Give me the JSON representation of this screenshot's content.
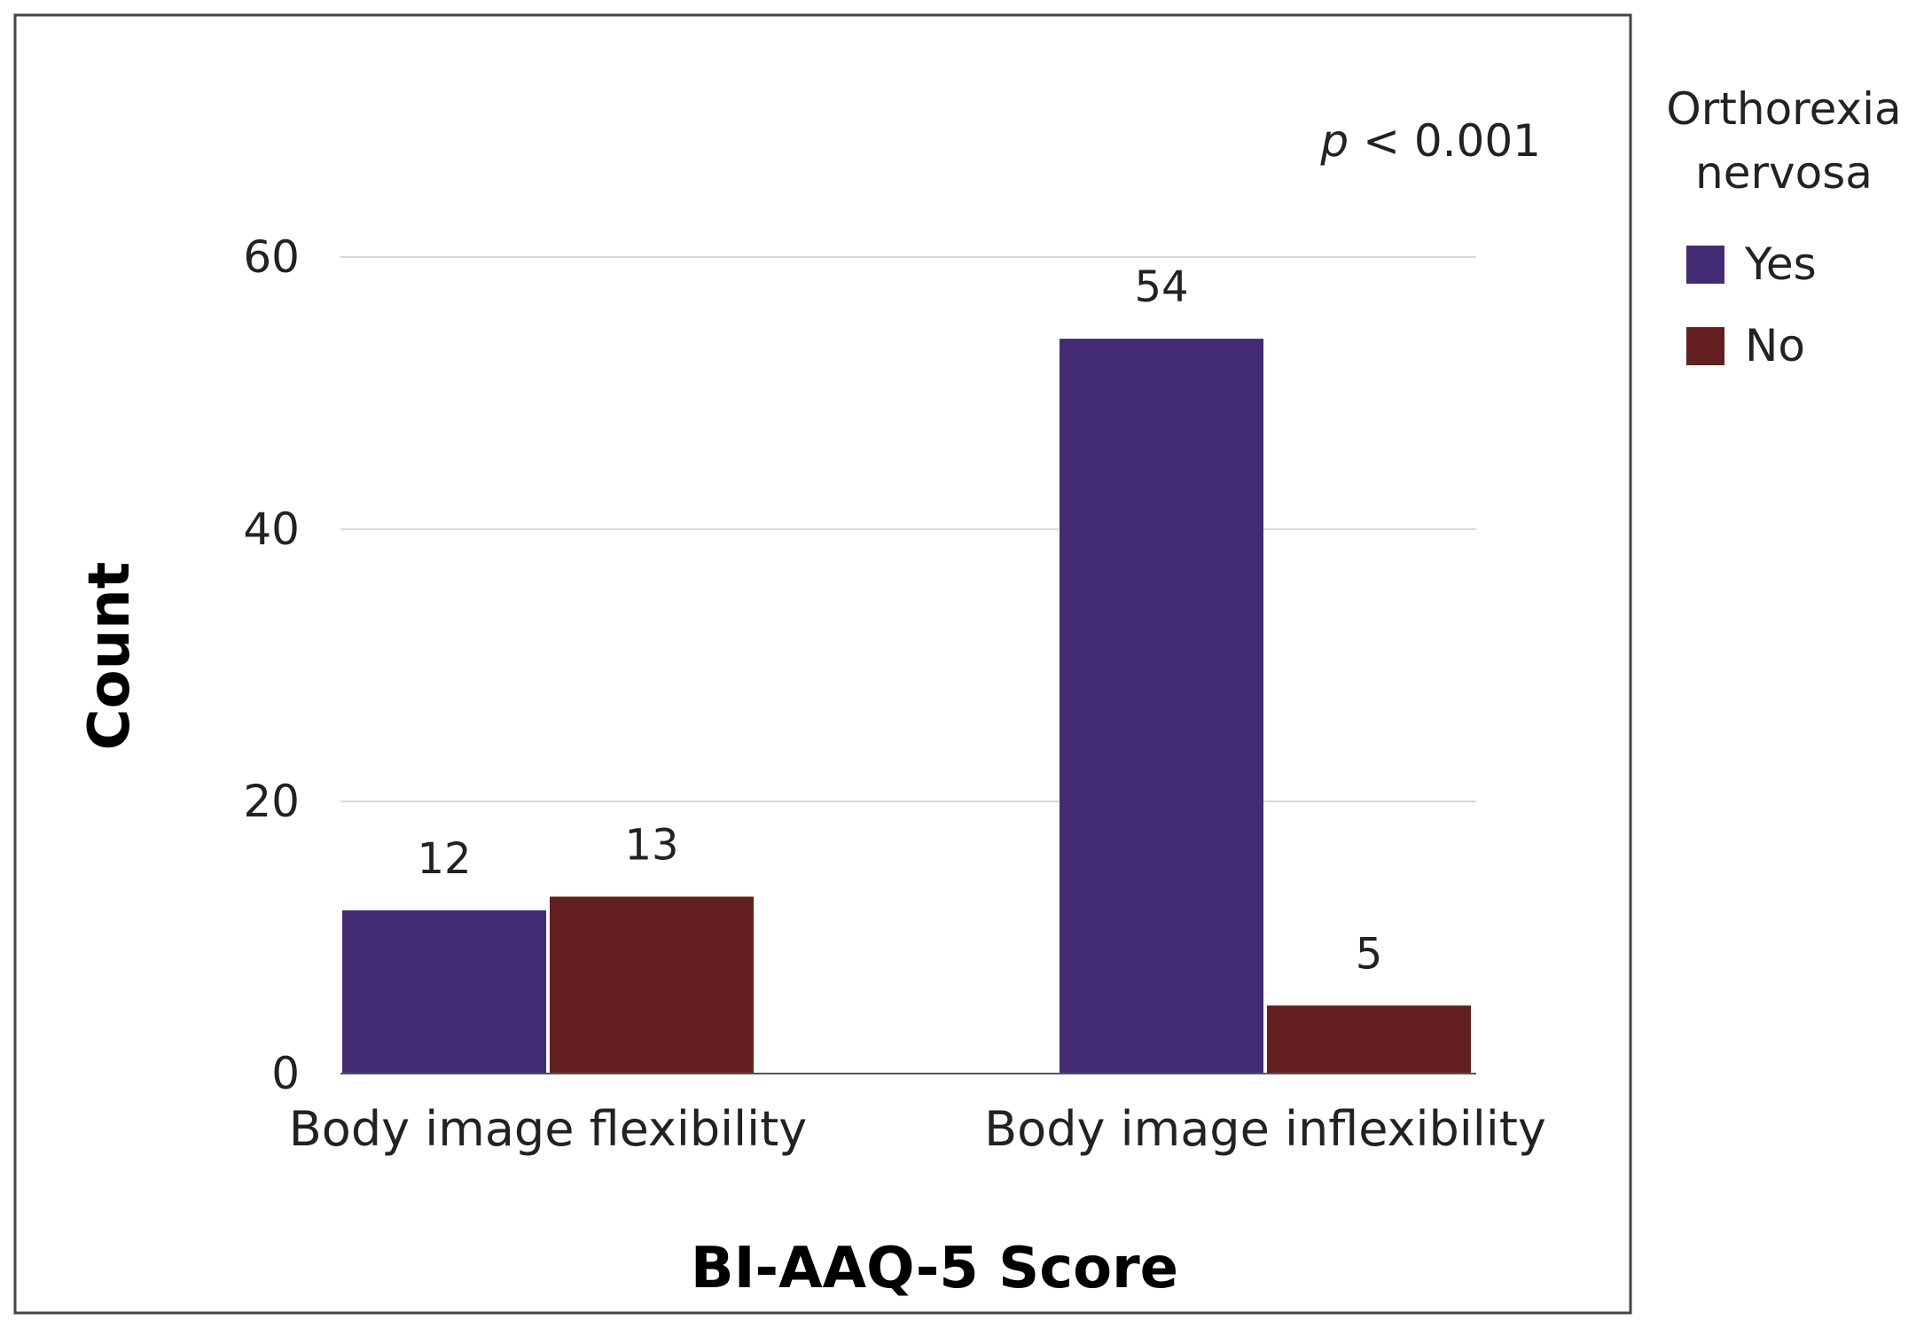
{
  "chart_data": {
    "type": "bar",
    "categories": [
      "Body image flexibility",
      "Body image inflexibility"
    ],
    "series": [
      {
        "name": "Yes",
        "values": [
          12,
          54
        ],
        "color": "#432c74"
      },
      {
        "name": "No",
        "values": [
          13,
          5
        ],
        "color": "#642020"
      }
    ],
    "xlabel": "BI-AAQ-5 Score",
    "ylabel": "Count",
    "ylim": [
      0,
      60
    ],
    "yticks": [
      0,
      20,
      40,
      60
    ],
    "grid": true,
    "legend": {
      "title_lines": [
        "Orthorexia",
        "nervosa"
      ],
      "placement": "right"
    },
    "annotation": {
      "italic": "p",
      "rest": " < 0.001"
    }
  }
}
